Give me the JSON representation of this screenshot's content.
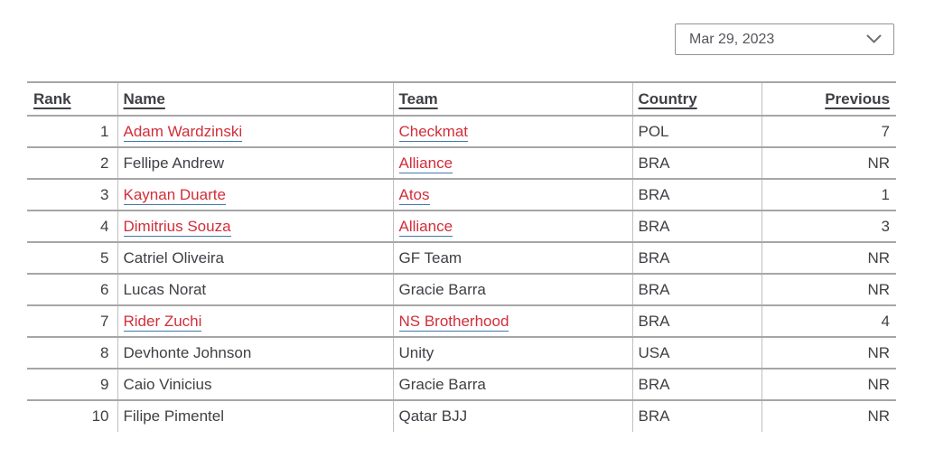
{
  "date_filter": {
    "value": "Mar 29, 2023",
    "icon": "chevron-down-icon"
  },
  "colors": {
    "link_red": "#d22e3a",
    "link_underline_blue": "#4576a6",
    "text": "#3f4045",
    "row_border": "#a6a6a6",
    "column_border": "#c0c0c0"
  },
  "table": {
    "columns": [
      {
        "key": "rank",
        "label": "Rank"
      },
      {
        "key": "name",
        "label": "Name"
      },
      {
        "key": "team",
        "label": "Team"
      },
      {
        "key": "country",
        "label": "Country"
      },
      {
        "key": "previous",
        "label": "Previous"
      }
    ],
    "rows": [
      {
        "rank": "1",
        "name": {
          "text": "Adam Wardzinski",
          "link": true
        },
        "team": {
          "text": "Checkmat",
          "link": true
        },
        "country": "POL",
        "previous": "7"
      },
      {
        "rank": "2",
        "name": {
          "text": "Fellipe Andrew",
          "link": false
        },
        "team": {
          "text": "Alliance",
          "link": true
        },
        "country": "BRA",
        "previous": "NR"
      },
      {
        "rank": "3",
        "name": {
          "text": "Kaynan Duarte",
          "link": true
        },
        "team": {
          "text": "Atos",
          "link": true
        },
        "country": "BRA",
        "previous": "1"
      },
      {
        "rank": "4",
        "name": {
          "text": "Dimitrius Souza",
          "link": true
        },
        "team": {
          "text": "Alliance",
          "link": true
        },
        "country": "BRA",
        "previous": "3"
      },
      {
        "rank": "5",
        "name": {
          "text": "Catriel Oliveira",
          "link": false
        },
        "team": {
          "text": "GF Team",
          "link": false
        },
        "country": "BRA",
        "previous": "NR"
      },
      {
        "rank": "6",
        "name": {
          "text": "Lucas Norat",
          "link": false
        },
        "team": {
          "text": "Gracie Barra",
          "link": false
        },
        "country": "BRA",
        "previous": "NR"
      },
      {
        "rank": "7",
        "name": {
          "text": "Rider Zuchi",
          "link": true
        },
        "team": {
          "text": "NS Brotherhood",
          "link": true
        },
        "country": "BRA",
        "previous": "4"
      },
      {
        "rank": "8",
        "name": {
          "text": "Devhonte Johnson",
          "link": false
        },
        "team": {
          "text": "Unity",
          "link": false
        },
        "country": "USA",
        "previous": "NR"
      },
      {
        "rank": "9",
        "name": {
          "text": "Caio Vinicius",
          "link": false
        },
        "team": {
          "text": "Gracie Barra",
          "link": false
        },
        "country": "BRA",
        "previous": "NR"
      },
      {
        "rank": "10",
        "name": {
          "text": "Filipe Pimentel",
          "link": false
        },
        "team": {
          "text": "Qatar BJJ",
          "link": false
        },
        "country": "BRA",
        "previous": "NR"
      }
    ]
  }
}
